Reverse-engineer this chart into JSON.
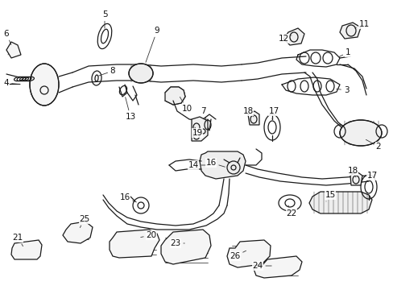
{
  "background": "#ffffff",
  "line_color": "#1a1a1a",
  "label_fontsize": 7.5,
  "lw_main": 0.9,
  "lw_thin": 0.5
}
